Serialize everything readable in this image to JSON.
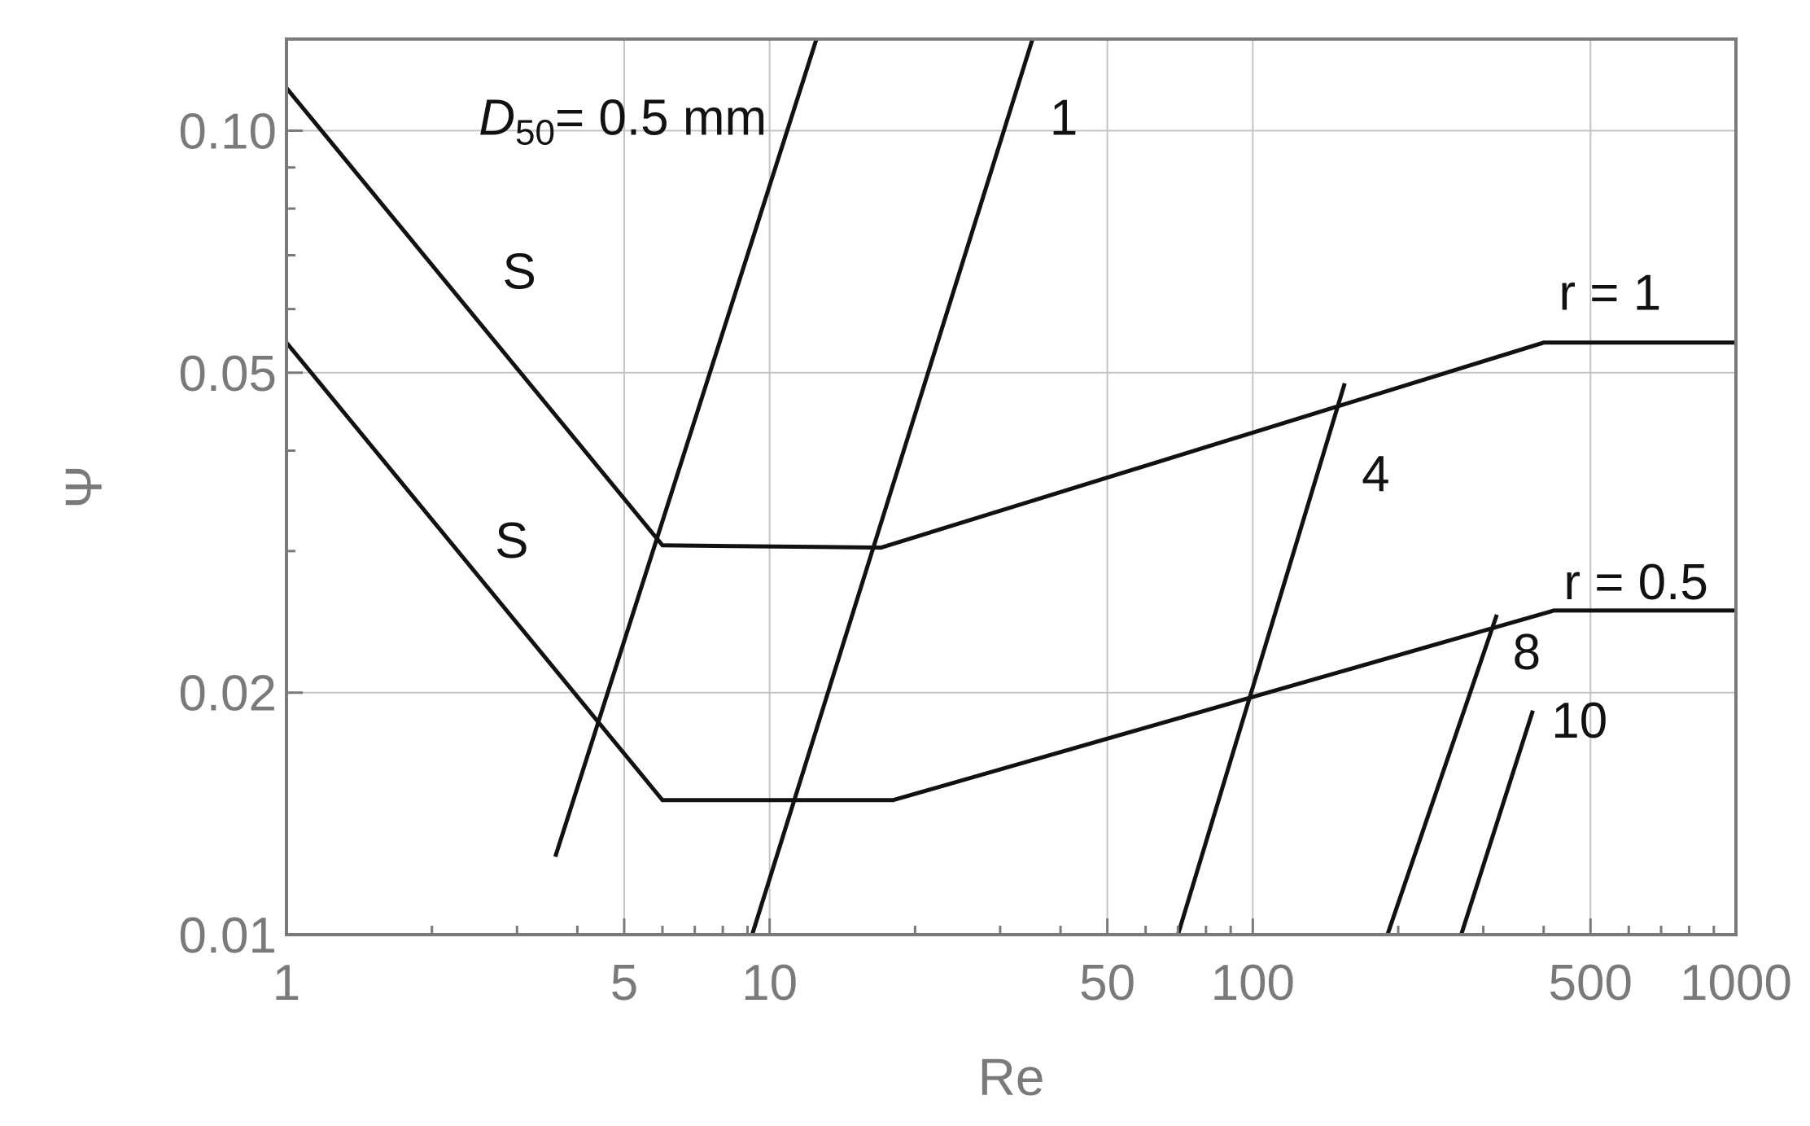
{
  "chart_data": {
    "type": "line",
    "xlabel": "Re",
    "ylabel": "Ψ",
    "x_scale": "log",
    "y_scale": "log",
    "xlim": [
      1,
      1000
    ],
    "ylim": [
      0.01,
      0.13
    ],
    "grid": true,
    "x_ticks": [
      {
        "value": 1,
        "label": "1"
      },
      {
        "value": 5,
        "label": "5"
      },
      {
        "value": 10,
        "label": "10"
      },
      {
        "value": 50,
        "label": "50"
      },
      {
        "value": 100,
        "label": "100"
      },
      {
        "value": 500,
        "label": "500"
      },
      {
        "value": 1000,
        "label": "1000"
      }
    ],
    "x_minor_ticks": [
      2,
      3,
      4,
      6,
      7,
      8,
      9,
      20,
      30,
      40,
      60,
      70,
      80,
      90,
      200,
      300,
      400,
      600,
      700,
      800,
      900
    ],
    "y_ticks": [
      {
        "value": 0.01,
        "label": "0.01"
      },
      {
        "value": 0.02,
        "label": "0.02"
      },
      {
        "value": 0.05,
        "label": "0.05"
      },
      {
        "value": 0.1,
        "label": "0.10"
      }
    ],
    "y_minor_ticks": [
      0.03,
      0.04,
      0.06,
      0.07,
      0.08,
      0.09
    ],
    "x_gridlines": [
      5,
      10,
      50,
      100,
      500
    ],
    "y_gridlines": [
      0.02,
      0.05,
      0.1
    ],
    "series": [
      {
        "label": "r = 1",
        "points": [
          [
            1,
            0.113
          ],
          [
            6,
            0.0305
          ],
          [
            17,
            0.0303
          ],
          [
            400,
            0.0545
          ],
          [
            1000,
            0.0545
          ]
        ]
      },
      {
        "label": "r = 0.5",
        "points": [
          [
            1,
            0.0545
          ],
          [
            6,
            0.0147
          ],
          [
            18,
            0.0147
          ],
          [
            420,
            0.0253
          ],
          [
            1000,
            0.0253
          ]
        ]
      },
      {
        "label": "D50 = 0.5 mm",
        "points": [
          [
            3.6,
            0.0125
          ],
          [
            12.5,
            0.13
          ]
        ]
      },
      {
        "label": "1",
        "points": [
          [
            9.2,
            0.01
          ],
          [
            35,
            0.13
          ]
        ]
      },
      {
        "label": "4",
        "points": [
          [
            70,
            0.01
          ],
          [
            155,
            0.0485
          ]
        ]
      },
      {
        "label": "8",
        "points": [
          [
            190,
            0.01
          ],
          [
            320,
            0.025
          ]
        ]
      },
      {
        "label": "10",
        "points": [
          [
            270,
            0.01
          ],
          [
            380,
            0.019
          ]
        ]
      }
    ],
    "annotations": [
      {
        "text": "S",
        "x": 2.8,
        "y": 0.067
      },
      {
        "text": "S",
        "x": 2.7,
        "y": 0.031
      },
      {
        "text": "1",
        "x": 38,
        "y": 0.104
      },
      {
        "text": "r = 1",
        "x": 430,
        "y": 0.063
      },
      {
        "text": "4",
        "x": 168,
        "y": 0.0375
      },
      {
        "text": "r = 0.5",
        "x": 440,
        "y": 0.0275
      },
      {
        "text": "8",
        "x": 345,
        "y": 0.0225
      },
      {
        "text": "10",
        "x": 415,
        "y": 0.0185
      }
    ],
    "d50_label": {
      "prefix": "D",
      "subscript": "50",
      "suffix": "= 0.5 mm",
      "x": 2.5,
      "y": 0.104
    }
  }
}
